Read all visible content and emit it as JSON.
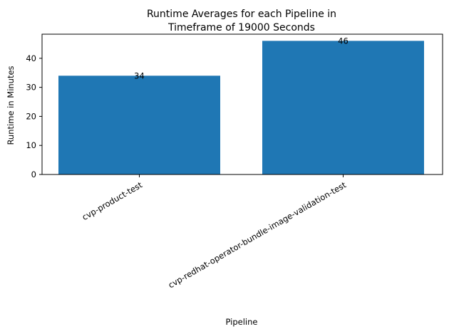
{
  "chart_data": {
    "type": "bar",
    "title_lines": [
      "Runtime Averages for each Pipeline in",
      "Timeframe of 19000 Seconds"
    ],
    "xlabel": "Pipeline",
    "ylabel": "Runtime in Minutes",
    "categories": [
      "cvp-product-test",
      "cvp-redhat-operator-bundle-image-validation-test"
    ],
    "values": [
      34,
      46
    ],
    "data_labels": [
      "34",
      "46"
    ],
    "yticks": [
      0,
      10,
      20,
      30,
      40
    ],
    "ylim": [
      0,
      48.3
    ],
    "bar_color": "#1f77b4",
    "grid": false,
    "legend": "none"
  }
}
